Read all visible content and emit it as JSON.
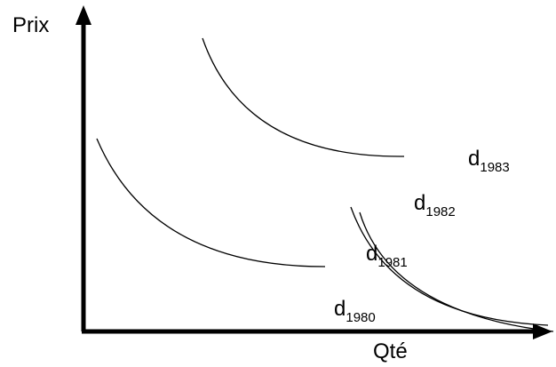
{
  "axes": {
    "y_label": "Prix",
    "x_label": "Qté"
  },
  "curves": [
    {
      "base": "d",
      "sub": "1980"
    },
    {
      "base": "d",
      "sub": "1981"
    },
    {
      "base": "d",
      "sub": "1982"
    },
    {
      "base": "d",
      "sub": "1983"
    }
  ],
  "colors": {
    "line": "#000000",
    "background": "#ffffff"
  }
}
